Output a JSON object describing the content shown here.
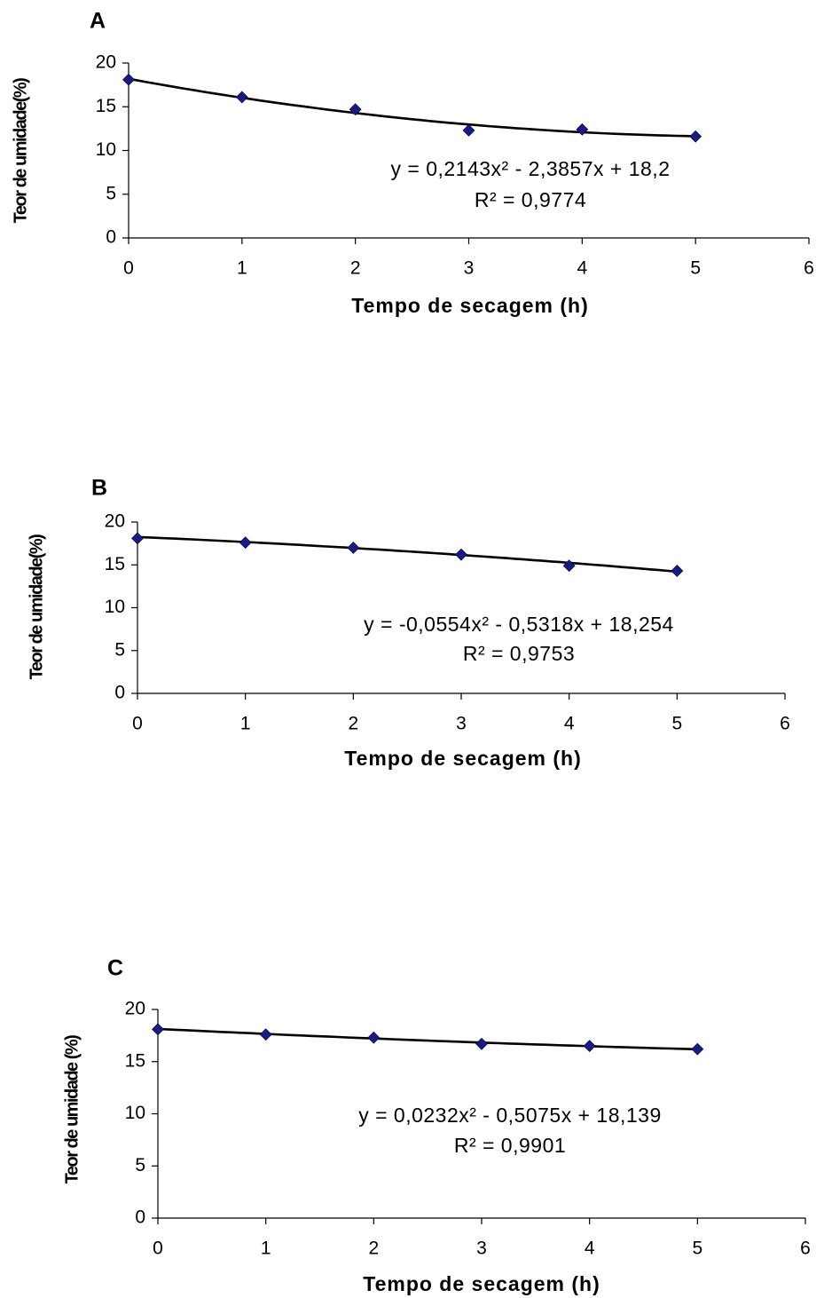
{
  "chart_data": [
    {
      "type": "scatter",
      "panel": "A",
      "x": [
        0,
        1,
        2,
        3,
        4,
        5
      ],
      "values": [
        18.1,
        16.1,
        14.7,
        12.3,
        12.4,
        11.6
      ],
      "color": "#1a1a80",
      "xlim": [
        0,
        6
      ],
      "ylim": [
        0,
        20
      ],
      "xticks": [
        0,
        1,
        2,
        3,
        4,
        5,
        6
      ],
      "yticks": [
        0,
        5,
        10,
        15,
        20
      ],
      "x_label": "Tempo de secagem (h)",
      "y_label": "Teor de umidade(%)",
      "trendline": {
        "coefficients": [
          0.2143,
          -2.3857,
          18.2
        ],
        "equation": "y = 0,2143x² - 2,3857x + 18,2",
        "r2": "R² = 0,9774"
      }
    },
    {
      "type": "scatter",
      "panel": "B",
      "x": [
        0,
        1,
        2,
        3,
        4,
        5
      ],
      "values": [
        18.1,
        17.6,
        17.0,
        16.2,
        14.9,
        14.3
      ],
      "color": "#1a1a80",
      "xlim": [
        0,
        6
      ],
      "ylim": [
        0,
        20
      ],
      "xticks": [
        0,
        1,
        2,
        3,
        4,
        5,
        6
      ],
      "yticks": [
        0,
        5,
        10,
        15,
        20
      ],
      "x_label": "Tempo de secagem (h)",
      "y_label": "Teor de umidade(%)",
      "trendline": {
        "coefficients": [
          -0.0554,
          -0.5318,
          18.254
        ],
        "equation": "y = -0,0554x² - 0,5318x + 18,254",
        "r2": "R² = 0,9753"
      }
    },
    {
      "type": "scatter",
      "panel": "C",
      "x": [
        0,
        1,
        2,
        3,
        4,
        5
      ],
      "values": [
        18.1,
        17.6,
        17.3,
        16.7,
        16.5,
        16.2
      ],
      "color": "#1a1a80",
      "xlim": [
        0,
        6
      ],
      "ylim": [
        0,
        20
      ],
      "xticks": [
        0,
        1,
        2,
        3,
        4,
        5,
        6
      ],
      "yticks": [
        0,
        5,
        10,
        15,
        20
      ],
      "x_label": "Tempo de secagem (h)",
      "y_label": "Teor de umidade (%)",
      "trendline": {
        "coefficients": [
          0.0232,
          -0.5075,
          18.139
        ],
        "equation": "y = 0,0232x² - 0,5075x + 18,139",
        "r2": "R² = 0,9901"
      }
    }
  ]
}
